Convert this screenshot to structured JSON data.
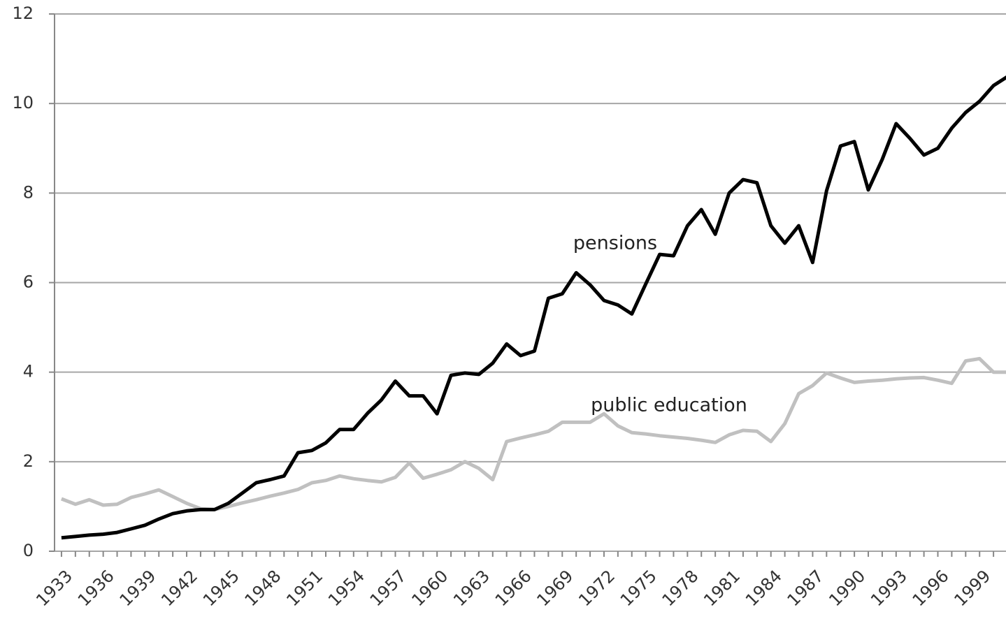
{
  "chart_data": {
    "type": "line",
    "x": [
      1933,
      1934,
      1935,
      1936,
      1937,
      1938,
      1939,
      1940,
      1941,
      1942,
      1943,
      1944,
      1945,
      1946,
      1947,
      1948,
      1949,
      1950,
      1951,
      1952,
      1953,
      1954,
      1955,
      1956,
      1957,
      1958,
      1959,
      1960,
      1961,
      1962,
      1963,
      1964,
      1965,
      1966,
      1967,
      1968,
      1969,
      1970,
      1971,
      1972,
      1973,
      1974,
      1975,
      1976,
      1977,
      1978,
      1979,
      1980,
      1981,
      1982,
      1983,
      1984,
      1985,
      1986,
      1987,
      1988,
      1989,
      1990,
      1991,
      1992,
      1993,
      1994,
      1995,
      1996,
      1997,
      1998,
      1999,
      2000,
      2001
    ],
    "series": [
      {
        "name": "pensions",
        "color": "#000000",
        "values": [
          0.3,
          0.33,
          0.36,
          0.38,
          0.42,
          0.5,
          0.58,
          0.72,
          0.84,
          0.9,
          0.93,
          0.93,
          1.07,
          1.3,
          1.53,
          1.6,
          1.68,
          2.2,
          2.25,
          2.42,
          2.72,
          2.72,
          3.08,
          3.38,
          3.8,
          3.47,
          3.47,
          3.07,
          3.93,
          3.98,
          3.95,
          4.2,
          4.63,
          4.37,
          4.47,
          5.65,
          5.75,
          6.22,
          5.95,
          5.6,
          5.5,
          5.3,
          5.97,
          6.63,
          6.6,
          7.27,
          7.63,
          7.08,
          8.0,
          8.3,
          8.23,
          7.27,
          6.88,
          7.27,
          6.45,
          8.05,
          9.05,
          9.15,
          8.07,
          8.75,
          9.55,
          9.22,
          8.85,
          9.0,
          9.45,
          9.8,
          10.05,
          10.4,
          10.6
        ]
      },
      {
        "name": "public education",
        "color": "#c0c0c0",
        "values": [
          1.17,
          1.05,
          1.15,
          1.03,
          1.05,
          1.2,
          1.28,
          1.37,
          1.22,
          1.07,
          0.95,
          0.93,
          1.0,
          1.08,
          1.15,
          1.23,
          1.3,
          1.38,
          1.53,
          1.58,
          1.68,
          1.62,
          1.58,
          1.55,
          1.65,
          1.97,
          1.63,
          1.72,
          1.82,
          2.0,
          1.85,
          1.6,
          2.45,
          2.53,
          2.6,
          2.68,
          2.88,
          2.88,
          2.88,
          3.07,
          2.8,
          2.65,
          2.62,
          2.58,
          2.55,
          2.52,
          2.48,
          2.43,
          2.6,
          2.7,
          2.68,
          2.45,
          2.85,
          3.52,
          3.7,
          3.98,
          3.87,
          3.77,
          3.8,
          3.82,
          3.85,
          3.87,
          3.88,
          3.82,
          3.75,
          4.25,
          4.3,
          4.0,
          4.0
        ]
      }
    ],
    "xlim": [
      1932.5,
      2001
    ],
    "xticks": [
      1933,
      1936,
      1939,
      1942,
      1945,
      1948,
      1951,
      1954,
      1957,
      1960,
      1963,
      1966,
      1969,
      1972,
      1975,
      1978,
      1981,
      1984,
      1987,
      1990,
      1993,
      1996,
      1999
    ],
    "ylim": [
      0,
      12
    ],
    "yticks": [
      0,
      2,
      4,
      6,
      8,
      10,
      12
    ],
    "grid": true
  }
}
